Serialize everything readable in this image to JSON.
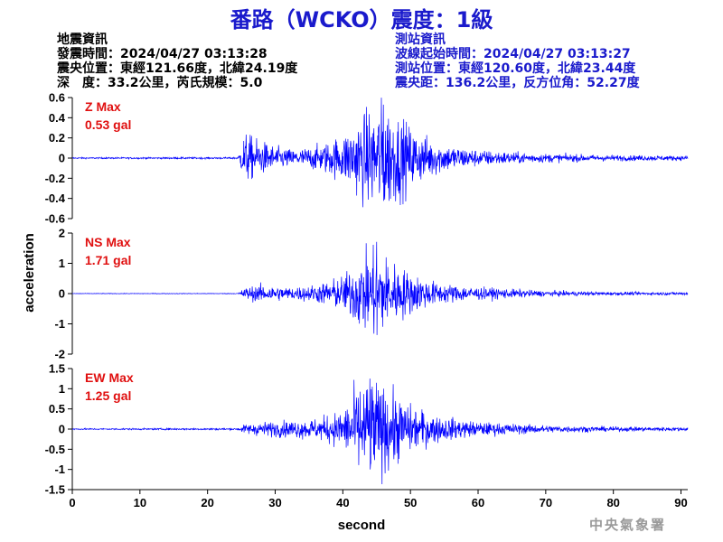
{
  "header": {
    "title": "番路（WCKO）震度：1級"
  },
  "quake_info": {
    "heading": "地震資訊",
    "origin_time": "發震時間：2024/04/27 03:13:28",
    "epicenter": "震央位置：東經121.66度，北緯24.19度",
    "depth_magnitude": "深　度：33.2公里，芮氏規模：5.0"
  },
  "station_info": {
    "heading": "測站資訊",
    "wave_start_time": "波線起始時間：2024/04/27 03:13:27",
    "location": "測站位置：東經120.60度，北緯23.44度",
    "distance_azimuth": "震央距：136.2公里，反方位角：52.27度"
  },
  "agency": "中央氣象署",
  "chart_data": {
    "type": "line",
    "xlabel": "second",
    "ylabel": "acceleration",
    "xlim": [
      0,
      91
    ],
    "xticks": [
      "0",
      "10",
      "20",
      "30",
      "40",
      "50",
      "60",
      "70",
      "80",
      "90"
    ],
    "line_color": "#0000ff",
    "label_color": "#e01010",
    "panels": [
      {
        "name": "Z Max",
        "max_label": "0.53 gal",
        "peak": 0.53,
        "ylim": [
          -0.6,
          0.6
        ],
        "yticks": [
          "0.6",
          "0.4",
          "0.2",
          "0",
          "-0.2",
          "-0.4",
          "-0.6"
        ],
        "noise": 0.006,
        "envelope": [
          [
            0,
            0.006
          ],
          [
            24.5,
            0.008
          ],
          [
            25.5,
            0.22
          ],
          [
            27,
            0.17
          ],
          [
            30,
            0.1
          ],
          [
            33,
            0.07
          ],
          [
            37,
            0.12
          ],
          [
            40,
            0.2
          ],
          [
            43,
            0.38
          ],
          [
            46,
            0.5
          ],
          [
            48,
            0.38
          ],
          [
            51,
            0.22
          ],
          [
            55,
            0.12
          ],
          [
            60,
            0.07
          ],
          [
            68,
            0.04
          ],
          [
            80,
            0.025
          ],
          [
            91,
            0.02
          ]
        ]
      },
      {
        "name": "NS Max",
        "max_label": "1.71 gal",
        "peak": 1.71,
        "ylim": [
          -2,
          2
        ],
        "yticks": [
          "2",
          "1",
          "0",
          "-1",
          "-2"
        ],
        "noise": 0.01,
        "envelope": [
          [
            0,
            0.008
          ],
          [
            24.5,
            0.01
          ],
          [
            25.5,
            0.18
          ],
          [
            28,
            0.25
          ],
          [
            32,
            0.18
          ],
          [
            36,
            0.25
          ],
          [
            40,
            0.5
          ],
          [
            43,
            1.1
          ],
          [
            45,
            1.3
          ],
          [
            47,
            0.95
          ],
          [
            50,
            0.6
          ],
          [
            54,
            0.3
          ],
          [
            60,
            0.18
          ],
          [
            70,
            0.08
          ],
          [
            80,
            0.05
          ],
          [
            91,
            0.04
          ]
        ]
      },
      {
        "name": "EW Max",
        "max_label": "1.25 gal",
        "peak": 1.25,
        "ylim": [
          -1.5,
          1.5
        ],
        "yticks": [
          "1.5",
          "1",
          "0.5",
          "0",
          "-0.5",
          "-1",
          "-1.5"
        ],
        "noise": 0.015,
        "envelope": [
          [
            0,
            0.015
          ],
          [
            24.5,
            0.02
          ],
          [
            25.5,
            0.1
          ],
          [
            28,
            0.15
          ],
          [
            32,
            0.18
          ],
          [
            36,
            0.22
          ],
          [
            40,
            0.4
          ],
          [
            42,
            0.9
          ],
          [
            44,
            1.1
          ],
          [
            47,
            0.85
          ],
          [
            50,
            0.5
          ],
          [
            54,
            0.28
          ],
          [
            60,
            0.15
          ],
          [
            70,
            0.08
          ],
          [
            80,
            0.05
          ],
          [
            91,
            0.04
          ]
        ]
      }
    ]
  }
}
